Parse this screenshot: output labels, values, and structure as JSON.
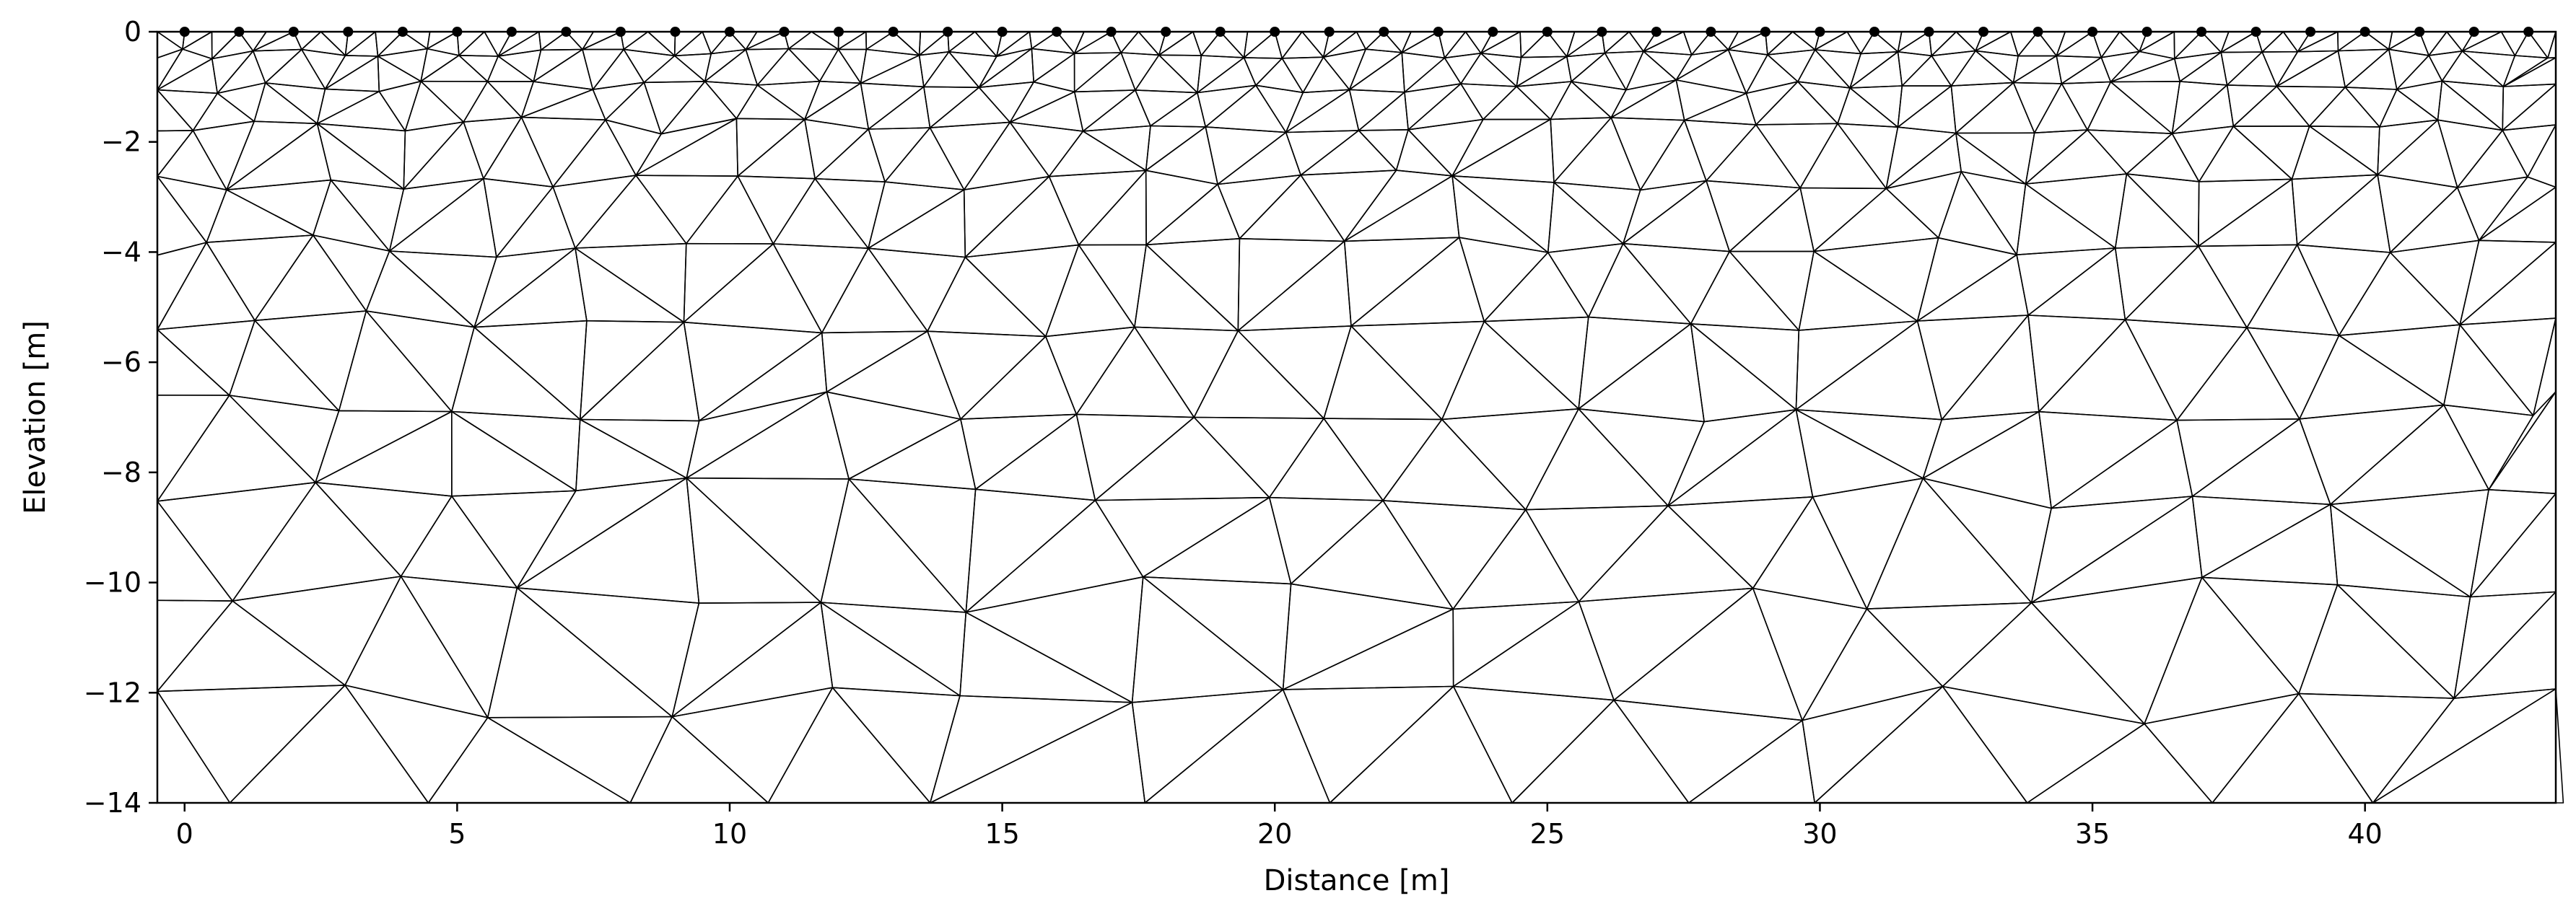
{
  "chart_data": {
    "type": "mesh",
    "xlabel": "Distance [m]",
    "ylabel": "Elevation [m]",
    "xlim": [
      -0.5,
      43.5
    ],
    "ylim": [
      -14,
      0
    ],
    "xticks": [
      0,
      5,
      10,
      15,
      20,
      25,
      30,
      35,
      40
    ],
    "yticks": [
      0,
      -2,
      -4,
      -6,
      -8,
      -10,
      -12,
      -14
    ],
    "xtick_labels": [
      "0",
      "5",
      "10",
      "15",
      "20",
      "25",
      "30",
      "35",
      "40"
    ],
    "ytick_labels": [
      "0",
      "−2",
      "−4",
      "−6",
      "−8",
      "−10",
      "−12",
      "−14"
    ],
    "electrodes": {
      "first_x": 0,
      "spacing": 1,
      "count": 44,
      "elevation": 0
    },
    "mesh": {
      "description": "Triangular finite-element mesh, finer near surface, coarser at depth",
      "layer_depths": [
        0,
        -0.4,
        -1.0,
        -1.7,
        -2.7,
        -3.9,
        -5.3,
        -6.8,
        -8.4,
        -10.2,
        -12.2,
        -14.0
      ],
      "node_spacing_per_layer": [
        0.5,
        0.75,
        1.0,
        1.25,
        1.5,
        1.75,
        2.0,
        2.25,
        2.5,
        2.75,
        3.0,
        3.25
      ],
      "line_color": "#000000"
    },
    "grid": false,
    "electrode_color": "#000000"
  }
}
